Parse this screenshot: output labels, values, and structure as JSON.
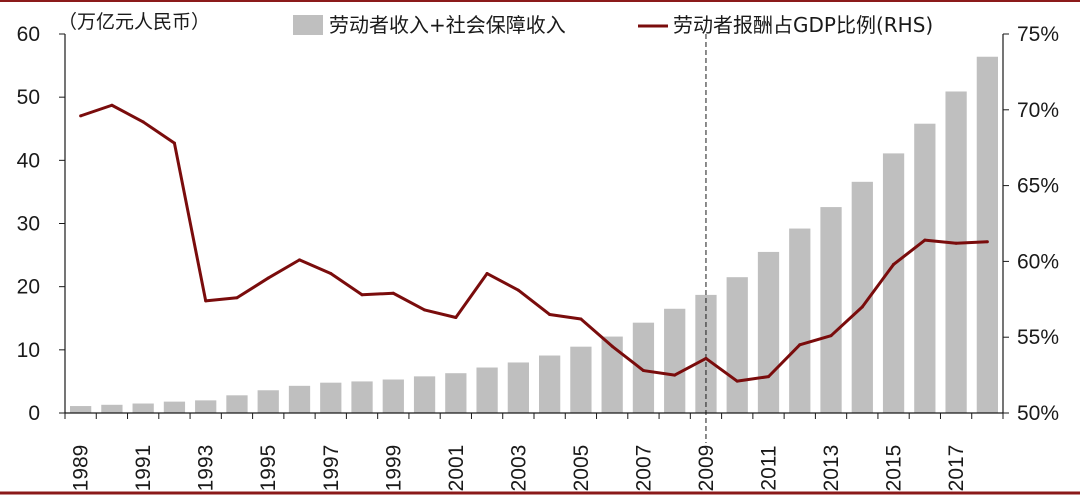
{
  "chart_data": {
    "type": "bar",
    "unit_label": "（万亿元人民币）",
    "categories": [
      1989,
      1990,
      1991,
      1992,
      1993,
      1994,
      1995,
      1996,
      1997,
      1998,
      1999,
      2000,
      2001,
      2002,
      2003,
      2004,
      2005,
      2006,
      2007,
      2008,
      2009,
      2010,
      2011,
      2012,
      2013,
      2014,
      2015,
      2016,
      2017,
      2018
    ],
    "x_tick_labels": [
      "1989",
      "1991",
      "1993",
      "1995",
      "1997",
      "1999",
      "2001",
      "2003",
      "2005",
      "2007",
      "2009",
      "2011",
      "2013",
      "2015",
      "2017"
    ],
    "y_left": {
      "range": [
        0,
        60
      ],
      "ticks": [
        "0",
        "10",
        "20",
        "30",
        "40",
        "50",
        "60"
      ]
    },
    "y_right": {
      "range": [
        50,
        75
      ],
      "ticks": [
        "50%",
        "55%",
        "60%",
        "65%",
        "70%",
        "75%"
      ]
    },
    "series": [
      {
        "name": "劳动者收入+社会保障收入",
        "type": "bar",
        "axis": "left",
        "color": "#bfbfbf",
        "values": [
          1.1,
          1.3,
          1.5,
          1.8,
          2.0,
          2.8,
          3.6,
          4.3,
          4.8,
          5.0,
          5.3,
          5.8,
          6.3,
          7.2,
          8.0,
          9.1,
          10.5,
          12.1,
          14.3,
          16.5,
          18.7,
          21.5,
          25.5,
          29.2,
          32.6,
          36.6,
          41.1,
          45.8,
          50.9,
          56.4
        ]
      },
      {
        "name": "劳动者报酬占GDP比例(RHS)",
        "type": "line",
        "axis": "right",
        "color": "#7a0c0c",
        "values": [
          69.6,
          70.3,
          69.2,
          67.8,
          57.4,
          57.6,
          58.9,
          60.1,
          59.2,
          57.8,
          57.9,
          56.8,
          56.3,
          59.2,
          58.1,
          56.5,
          56.2,
          54.4,
          52.8,
          52.5,
          53.6,
          52.1,
          52.4,
          54.5,
          55.1,
          57.0,
          59.8,
          61.4,
          61.2,
          61.3
        ]
      }
    ],
    "reference_line": {
      "x": 2009,
      "style": "dashed"
    },
    "legend_position": "top",
    "frame_color": "#8b1a1a"
  }
}
